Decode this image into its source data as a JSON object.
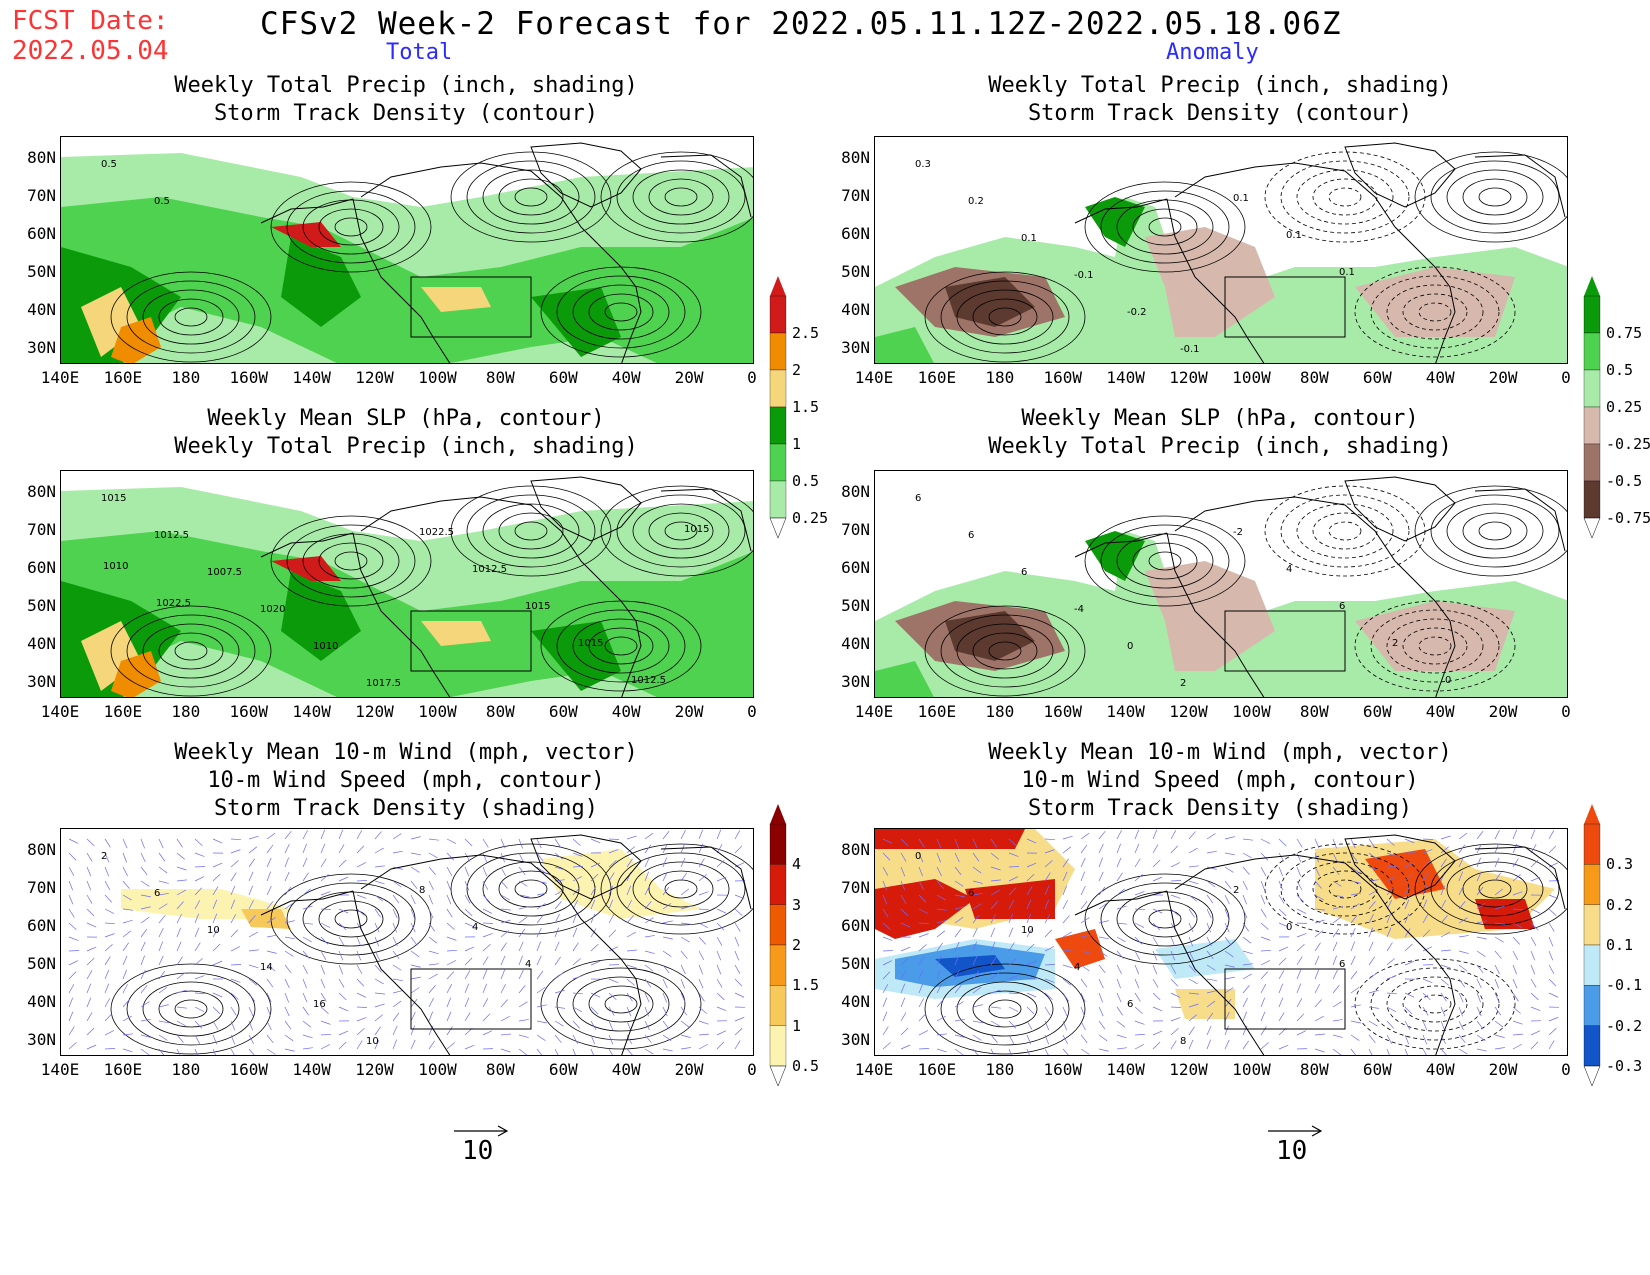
{
  "header": {
    "fcst_label": "FCST Date:",
    "fcst_date": "2022.05.04",
    "title": "CFSv2 Week-2 Forecast for 2022.05.11.12Z-2022.05.18.06Z",
    "col_total": "Total",
    "col_anomaly": "Anomaly"
  },
  "panels": {
    "p1": [
      "Weekly Total Precip (inch, shading)",
      "Storm Track Density (contour)"
    ],
    "p2": [
      "Weekly Total Precip (inch, shading)",
      "Storm Track Density (contour)"
    ],
    "p3": [
      "Weekly Mean SLP (hPa, contour)",
      "Weekly Total Precip (inch, shading)"
    ],
    "p4": [
      "Weekly Mean SLP (hPa, contour)",
      "Weekly Total Precip (inch, shading)"
    ],
    "p5": [
      "Weekly Mean 10-m Wind (mph, vector)",
      "10-m Wind Speed (mph, contour)",
      "Storm Track Density (shading)"
    ],
    "p6": [
      "Weekly Mean 10-m Wind (mph, vector)",
      "10-m Wind Speed (mph, contour)",
      "Storm Track Density (shading)"
    ]
  },
  "axes": {
    "lat_labels": [
      "80N",
      "70N",
      "60N",
      "50N",
      "40N",
      "30N"
    ],
    "lon_labels": [
      "140E",
      "160E",
      "180",
      "160W",
      "140W",
      "120W",
      "100W",
      "80W",
      "60W",
      "40W",
      "20W",
      "0"
    ]
  },
  "colorbars": {
    "precip_total": {
      "labels": [
        "2.5",
        "2",
        "1.5",
        "1",
        "0.5",
        "0.25"
      ],
      "colors": [
        "#d11a1a",
        "#f08c00",
        "#f5d67a",
        "#0a9a0a",
        "#4fd24f",
        "#a8eba8"
      ]
    },
    "precip_anom": {
      "labels": [
        "0.75",
        "0.5",
        "0.25",
        "-0.25",
        "-0.5",
        "-0.75"
      ],
      "colors": [
        "#0a9a0a",
        "#4fd24f",
        "#a8eba8",
        "#d6b8ad",
        "#9e7468",
        "#5c3a30"
      ]
    },
    "storm_total": {
      "labels": [
        "4",
        "3",
        "2",
        "1.5",
        "1",
        "0.5"
      ],
      "colors": [
        "#8b0000",
        "#d61b0b",
        "#ee5a00",
        "#f79a1a",
        "#f7c85a",
        "#fdf3b0"
      ]
    },
    "storm_anom": {
      "labels": [
        "0.3",
        "0.2",
        "0.1",
        "-0.1",
        "-0.2",
        "-0.3"
      ],
      "colors": [
        "#ee4a10",
        "#f79a1a",
        "#f7dd8a",
        "#bfe9f7",
        "#4a9be8",
        "#1255c8"
      ]
    }
  },
  "contour_labels": {
    "p1": [
      "0.5",
      "0.5"
    ],
    "p2": [
      "0.3",
      "0.2",
      "0.1",
      "-0.1",
      "-0.2",
      "-0.1",
      "0.1",
      "0.1",
      "0.1"
    ],
    "p3": [
      "1015",
      "1012.5",
      "1007.5",
      "1020",
      "1010",
      "1017.5",
      "1022.5",
      "1012.5",
      "1015",
      "1015",
      "1012.5",
      "1015",
      "1010",
      "1022.5"
    ],
    "p4": [
      "6",
      "6",
      "6",
      "-4",
      "0",
      "2",
      "-2",
      "4",
      "6",
      "2",
      "0"
    ],
    "p5": [
      "2",
      "6",
      "10",
      "14",
      "16",
      "10",
      "8",
      "4",
      "4"
    ],
    "p6": [
      "0",
      "6",
      "10",
      "4",
      "6",
      "8",
      "2",
      "0",
      "6"
    ]
  },
  "vector_reference": {
    "value": "10"
  }
}
